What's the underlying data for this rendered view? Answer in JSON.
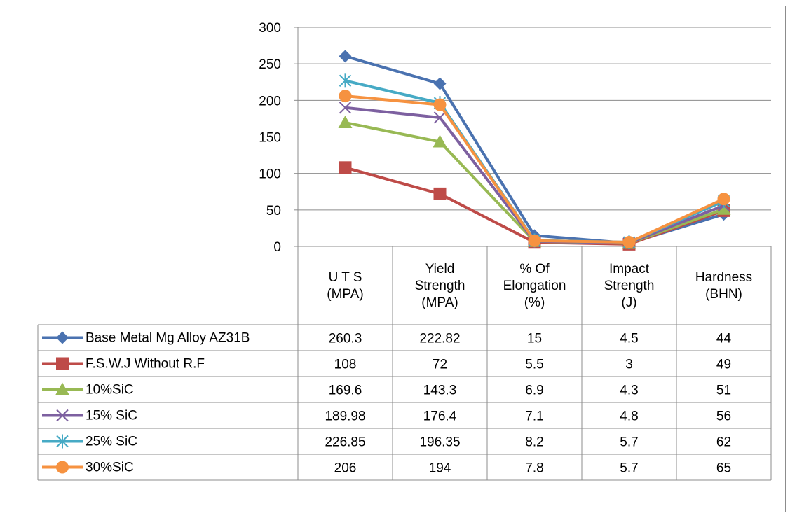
{
  "chart_data": {
    "type": "line",
    "title": "",
    "xlabel": "",
    "ylabel": "",
    "ylim": [
      0,
      300
    ],
    "yticks": [
      0,
      50,
      100,
      150,
      200,
      250,
      300
    ],
    "grid": true,
    "legend": "data-table-left",
    "categories": [
      [
        "U T S",
        "(MPA)"
      ],
      [
        "Yield",
        "Strength",
        "(MPA)"
      ],
      [
        "% Of",
        "Elongation",
        "(%)"
      ],
      [
        "Impact",
        "Strength",
        "(J)"
      ],
      [
        "Hardness",
        "(BHN)"
      ]
    ],
    "series": [
      {
        "name": "Base Metal Mg Alloy AZ31B",
        "color": "#4a72b0",
        "marker": "diamond",
        "values": [
          260.3,
          222.82,
          15,
          4.5,
          44
        ],
        "labels": [
          "260.3",
          "222.82",
          "15",
          "4.5",
          "44"
        ]
      },
      {
        "name": "F.S.W.J Without R.F",
        "color": "#be4b48",
        "marker": "square",
        "values": [
          108,
          72,
          5.5,
          3,
          49
        ],
        "labels": [
          "108",
          "72",
          "5.5",
          "3",
          "49"
        ]
      },
      {
        "name": "10%SiC",
        "color": "#98b954",
        "marker": "triangle",
        "values": [
          169.6,
          143.3,
          6.9,
          4.3,
          51
        ],
        "labels": [
          "169.6",
          "143.3",
          "6.9",
          "4.3",
          "51"
        ]
      },
      {
        "name": "15% SiC",
        "color": "#7d60a0",
        "marker": "x",
        "values": [
          189.98,
          176.4,
          7.1,
          4.8,
          56
        ],
        "labels": [
          "189.98",
          "176.4",
          "7.1",
          "4.8",
          "56"
        ]
      },
      {
        "name": "25% SiC",
        "color": "#46aac5",
        "marker": "star",
        "values": [
          226.85,
          196.35,
          8.2,
          5.7,
          62
        ],
        "labels": [
          "226.85",
          "196.35",
          "8.2",
          "5.7",
          "62"
        ]
      },
      {
        "name": "30%SiC",
        "color": "#f69240",
        "marker": "circle",
        "values": [
          206,
          194,
          7.8,
          5.7,
          65
        ],
        "labels": [
          "206",
          "194",
          "7.8",
          "5.7",
          "65"
        ]
      }
    ]
  }
}
